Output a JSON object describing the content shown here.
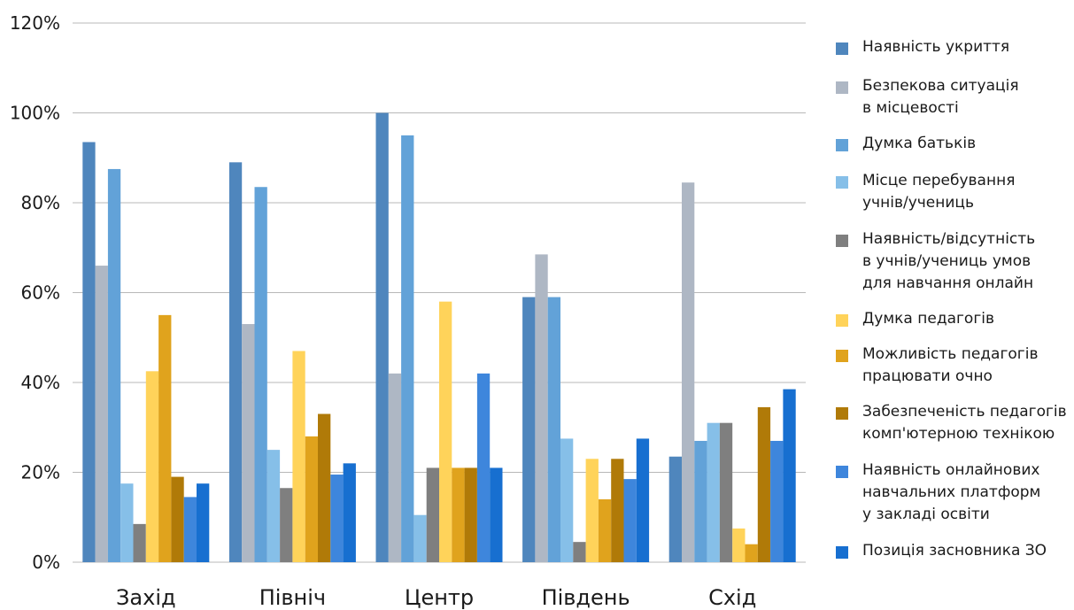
{
  "chart_data": {
    "type": "bar",
    "categories": [
      "Захід",
      "Північ",
      "Центр",
      "Південь",
      "Схід"
    ],
    "y_ticks": [
      "0%",
      "20%",
      "40%",
      "60%",
      "80%",
      "100%",
      "120%"
    ],
    "ylim": [
      0,
      120
    ],
    "grid": true,
    "legend_position": "right",
    "series": [
      {
        "name": "Наявність укриття",
        "color": "#4f86bd",
        "values": [
          93.5,
          89,
          100,
          59,
          23.5
        ]
      },
      {
        "name": "Безпекова ситуація\nв місцевості",
        "color": "#aeb7c4",
        "values": [
          66,
          53,
          42,
          68.5,
          84.5
        ]
      },
      {
        "name": "Думка батьків",
        "color": "#62a2d8",
        "values": [
          87.5,
          83.5,
          95,
          59,
          27
        ]
      },
      {
        "name": "Місце перебування\nучнів/учениць",
        "color": "#86bfe8",
        "values": [
          17.5,
          25,
          10.5,
          27.5,
          31
        ]
      },
      {
        "name": "Наявність/відсутність\nв учнів/учениць умов\nдля навчання онлайн",
        "color": "#7f7f7f",
        "values": [
          8.5,
          16.5,
          21,
          4.5,
          31
        ]
      },
      {
        "name": "Думка педагогів",
        "color": "#ffd35a",
        "values": [
          42.5,
          47,
          58,
          23,
          7.5
        ]
      },
      {
        "name": "Можливість педагогів\nпрацювати очно",
        "color": "#e0a31d",
        "values": [
          55,
          28,
          21,
          14,
          4
        ]
      },
      {
        "name": "Забезпеченість педагогів\nкомп'ютерною технікою",
        "color": "#b07a08",
        "values": [
          19,
          33,
          21,
          23,
          34.5
        ]
      },
      {
        "name": "Наявність онлайнових\nнавчальних платформ\nу закладі освіти",
        "color": "#3e86dc",
        "values": [
          14.5,
          19.5,
          42,
          18.5,
          27
        ]
      },
      {
        "name": "Позиція засновника ЗО",
        "color": "#176fd0",
        "values": [
          17.5,
          22,
          21,
          27.5,
          38.5
        ]
      }
    ]
  }
}
